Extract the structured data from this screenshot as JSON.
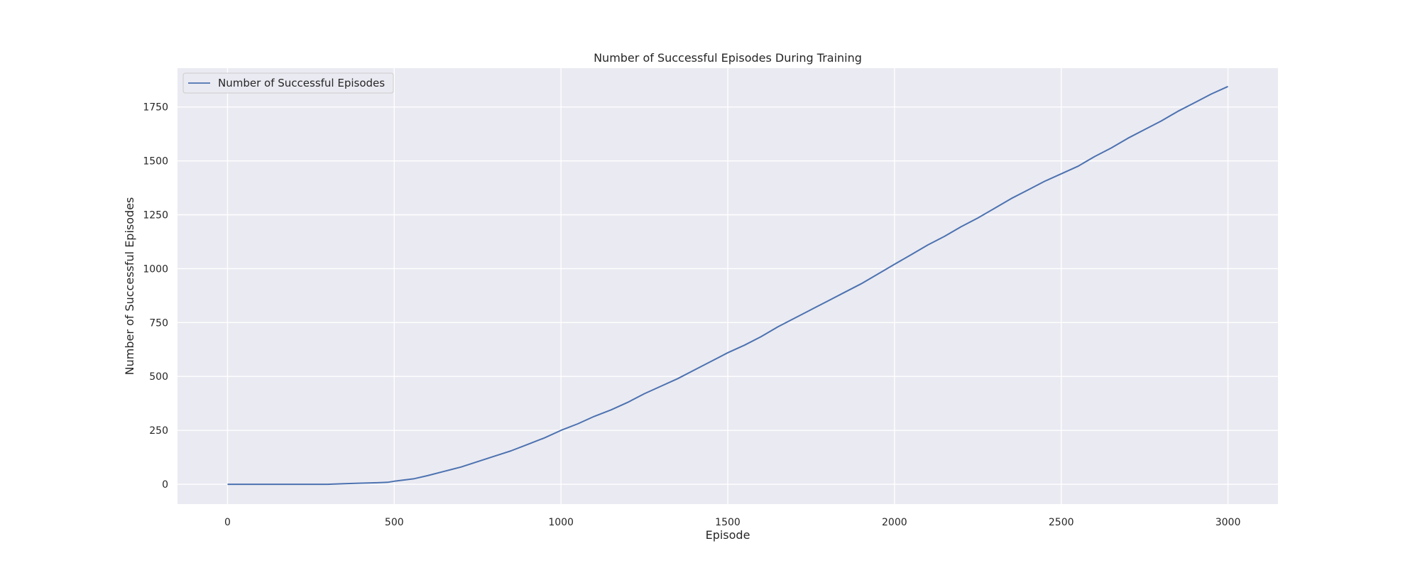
{
  "colors": {
    "plot_background": "#eaeaf2",
    "grid": "#ffffff",
    "series_line": "#4c72b0",
    "text": "#262626",
    "legend_border": "#cccccc"
  },
  "chart_data": {
    "type": "line",
    "title": "Number of Successful Episodes During Training",
    "xlabel": "Episode",
    "ylabel": "Number of Successful Episodes",
    "xlim": [
      -150,
      3150
    ],
    "ylim": [
      -92,
      1930
    ],
    "xticks": [
      0,
      500,
      1000,
      1500,
      2000,
      2500,
      3000
    ],
    "yticks": [
      0,
      250,
      500,
      750,
      1000,
      1250,
      1500,
      1750
    ],
    "grid": true,
    "legend_position": "top-left",
    "series": [
      {
        "name": "Number of Successful Episodes",
        "x": [
          0,
          100,
          200,
          300,
          320,
          350,
          400,
          450,
          480,
          500,
          530,
          560,
          600,
          650,
          700,
          750,
          800,
          850,
          900,
          950,
          1000,
          1050,
          1100,
          1150,
          1200,
          1250,
          1300,
          1350,
          1400,
          1450,
          1500,
          1550,
          1600,
          1650,
          1700,
          1750,
          1800,
          1850,
          1900,
          1950,
          2000,
          2050,
          2100,
          2150,
          2200,
          2250,
          2300,
          2350,
          2400,
          2450,
          2500,
          2550,
          2600,
          2650,
          2700,
          2750,
          2800,
          2850,
          2900,
          2950,
          3000
        ],
        "y": [
          0,
          0,
          0,
          0,
          1,
          3,
          5,
          7,
          9,
          14,
          20,
          26,
          40,
          60,
          80,
          105,
          130,
          155,
          185,
          215,
          250,
          280,
          315,
          345,
          380,
          420,
          455,
          490,
          530,
          570,
          610,
          645,
          685,
          730,
          770,
          810,
          850,
          890,
          930,
          975,
          1020,
          1065,
          1110,
          1150,
          1195,
          1235,
          1280,
          1325,
          1365,
          1405,
          1440,
          1475,
          1520,
          1560,
          1605,
          1645,
          1685,
          1730,
          1770,
          1810,
          1845
        ]
      }
    ]
  }
}
